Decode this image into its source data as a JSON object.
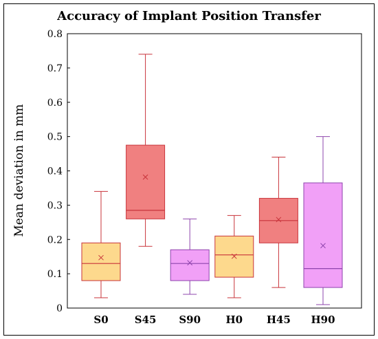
{
  "chart_data": {
    "type": "box",
    "title": "Accuracy of Implant Position Transfer",
    "xlabel": "",
    "ylabel": "Mean deviation in mm",
    "ylim": [
      0,
      0.8
    ],
    "yticks": [
      "0",
      "0.1",
      "0.2",
      "0.3",
      "0.4",
      "0.5",
      "0.6",
      "0.7",
      "0.8"
    ],
    "categories": [
      "S0",
      "S45",
      "S90",
      "H0",
      "H45",
      "H90"
    ],
    "boxes": [
      {
        "category": "S0",
        "min": 0.03,
        "q1": 0.08,
        "median": 0.13,
        "q3": 0.19,
        "max": 0.34,
        "mean": 0.147,
        "fill": "#fdd98d",
        "stroke": "#c8333a"
      },
      {
        "category": "S45",
        "min": 0.18,
        "q1": 0.26,
        "median": 0.285,
        "q3": 0.475,
        "max": 0.74,
        "mean": 0.382,
        "fill": "#f08080",
        "stroke": "#c8333a"
      },
      {
        "category": "S90",
        "min": 0.04,
        "q1": 0.08,
        "median": 0.13,
        "q3": 0.17,
        "max": 0.26,
        "mean": 0.132,
        "fill": "#f1a0f7",
        "stroke": "#8e44ad"
      },
      {
        "category": "H0",
        "min": 0.03,
        "q1": 0.09,
        "median": 0.155,
        "q3": 0.21,
        "max": 0.27,
        "mean": 0.151,
        "fill": "#fdd98d",
        "stroke": "#c8333a"
      },
      {
        "category": "H45",
        "min": 0.06,
        "q1": 0.19,
        "median": 0.255,
        "q3": 0.32,
        "max": 0.44,
        "mean": 0.258,
        "fill": "#f08080",
        "stroke": "#c8333a"
      },
      {
        "category": "H90",
        "min": 0.01,
        "q1": 0.06,
        "median": 0.115,
        "q3": 0.365,
        "max": 0.5,
        "mean": 0.182,
        "fill": "#f1a0f7",
        "stroke": "#8e44ad"
      }
    ],
    "grid": false,
    "legend": "none"
  }
}
